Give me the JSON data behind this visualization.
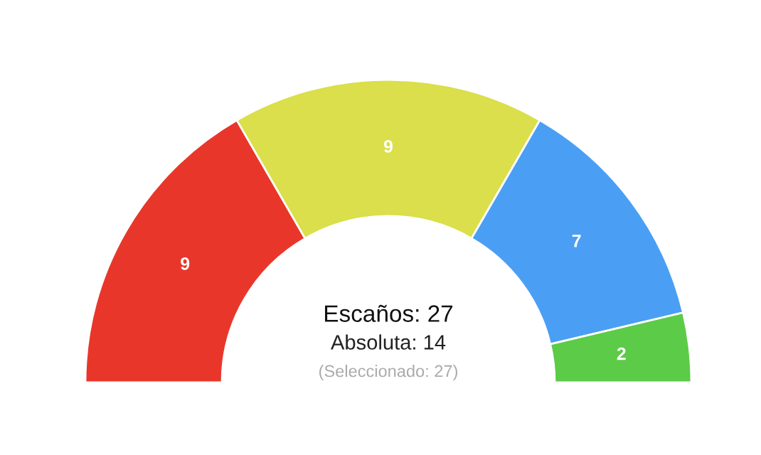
{
  "chart_data": {
    "type": "donut",
    "categories": [
      null,
      null,
      null,
      null
    ],
    "values": [
      9,
      9,
      7,
      2
    ],
    "colors": [
      "#e8372a",
      "#dadf4b",
      "#4a9ff5",
      "#5ccb47"
    ],
    "data_labels": true,
    "annotations": [
      "Escaños: 27",
      "Absoluta: 14",
      "(Seleccionado: 27)"
    ]
  }
}
